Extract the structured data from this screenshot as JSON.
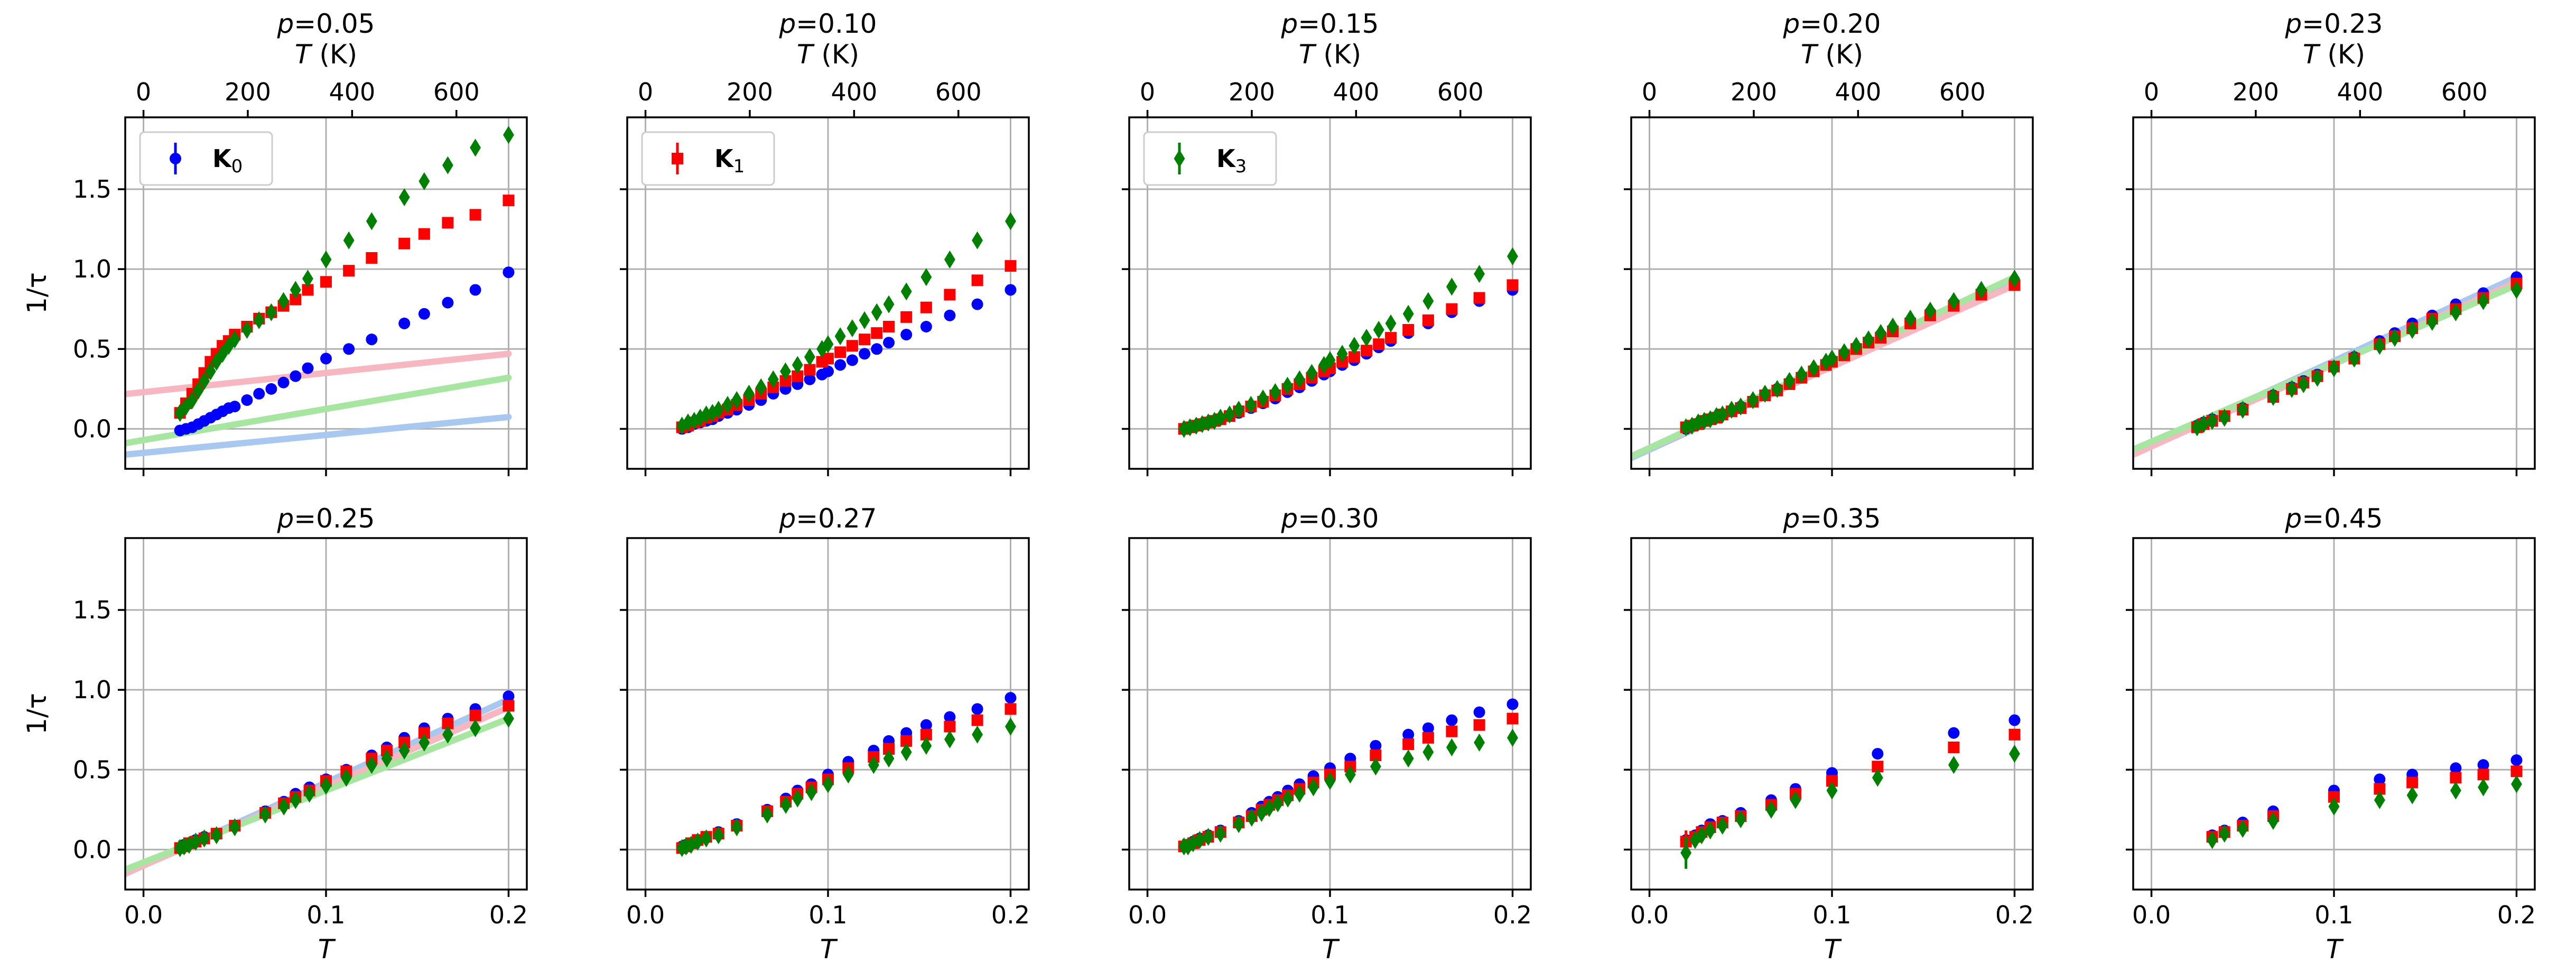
{
  "chart_data": {
    "type": "scatter",
    "ylabel": "1/τ",
    "xlabel": "T",
    "xlim": [
      -0.01,
      0.21
    ],
    "ylim": [
      -0.25,
      1.95
    ],
    "xticks": [
      0.0,
      0.1,
      0.2
    ],
    "xtick_labels": [
      "0.0",
      "0.1",
      "0.2"
    ],
    "yticks": [
      0.0,
      0.5,
      1.0,
      1.5
    ],
    "ytick_labels": [
      "0.0",
      "0.5",
      "1.0",
      "1.5"
    ],
    "top_axis": {
      "label": "T (K)",
      "kelvin_per_unit": 3500,
      "ticks": [
        0,
        200,
        400,
        600
      ],
      "tick_labels": [
        "0",
        "200",
        "400",
        "600"
      ]
    },
    "grid": true,
    "series_styles": [
      {
        "name": "K",
        "subscript": "0",
        "color": "#0000ff",
        "fit_color": "#a8c8f0",
        "marker": "circle"
      },
      {
        "name": "K",
        "subscript": "1",
        "color": "#ff0000",
        "fit_color": "#f7b7c0",
        "marker": "square"
      },
      {
        "name": "K",
        "subscript": "3",
        "color": "#008000",
        "fit_color": "#a6e6a0",
        "marker": "diamond"
      }
    ],
    "panels": [
      {
        "title_var": "p",
        "title_value": "=0.05",
        "legend_series": 0,
        "x": [
          0.02,
          0.0233,
          0.0267,
          0.03,
          0.0333,
          0.0367,
          0.04,
          0.0433,
          0.0467,
          0.05,
          0.0567,
          0.0633,
          0.07,
          0.0767,
          0.0833,
          0.09,
          0.1,
          0.1125,
          0.125,
          0.1429,
          0.1538,
          0.1667,
          0.1818,
          0.2
        ],
        "series": [
          [
            -0.01,
            0.0,
            0.01,
            0.03,
            0.05,
            0.07,
            0.09,
            0.11,
            0.13,
            0.14,
            0.18,
            0.22,
            0.25,
            0.29,
            0.33,
            0.38,
            0.44,
            0.5,
            0.56,
            0.66,
            0.72,
            0.79,
            0.87,
            0.98
          ],
          [
            0.1,
            0.16,
            0.22,
            0.28,
            0.35,
            0.42,
            0.47,
            0.52,
            0.55,
            0.59,
            0.64,
            0.69,
            0.73,
            0.77,
            0.81,
            0.87,
            0.92,
            0.99,
            1.07,
            1.16,
            1.22,
            1.29,
            1.34,
            1.43
          ],
          [
            0.1,
            0.14,
            0.18,
            0.24,
            0.3,
            0.36,
            0.42,
            0.47,
            0.52,
            0.56,
            0.62,
            0.68,
            0.73,
            0.8,
            0.87,
            0.94,
            1.06,
            1.18,
            1.3,
            1.45,
            1.55,
            1.65,
            1.76,
            1.84
          ]
        ],
        "fits": [
          [
            -0.15,
            1.12
          ],
          [
            0.23,
            1.2
          ],
          [
            -0.07,
            1.95
          ]
        ]
      },
      {
        "title_var": "p",
        "title_value": "=0.10",
        "legend_series": 1,
        "x": [
          0.02,
          0.0233,
          0.0267,
          0.03,
          0.0333,
          0.0367,
          0.04,
          0.045,
          0.05,
          0.0567,
          0.0633,
          0.07,
          0.0767,
          0.0833,
          0.09,
          0.0967,
          0.1,
          0.1067,
          0.1133,
          0.12,
          0.1267,
          0.1333,
          0.1429,
          0.1538,
          0.1667,
          0.1818,
          0.2
        ],
        "series": [
          [
            0.0,
            0.01,
            0.03,
            0.04,
            0.05,
            0.06,
            0.08,
            0.1,
            0.12,
            0.15,
            0.18,
            0.22,
            0.25,
            0.28,
            0.31,
            0.34,
            0.36,
            0.4,
            0.43,
            0.47,
            0.5,
            0.54,
            0.59,
            0.64,
            0.71,
            0.78,
            0.87
          ],
          [
            0.01,
            0.02,
            0.04,
            0.05,
            0.07,
            0.08,
            0.1,
            0.12,
            0.15,
            0.18,
            0.22,
            0.26,
            0.3,
            0.33,
            0.37,
            0.42,
            0.44,
            0.48,
            0.52,
            0.56,
            0.6,
            0.64,
            0.7,
            0.76,
            0.84,
            0.93,
            1.02
          ],
          [
            0.02,
            0.04,
            0.05,
            0.07,
            0.09,
            0.1,
            0.12,
            0.15,
            0.18,
            0.22,
            0.26,
            0.31,
            0.36,
            0.4,
            0.45,
            0.5,
            0.53,
            0.58,
            0.63,
            0.68,
            0.73,
            0.78,
            0.86,
            0.95,
            1.06,
            1.18,
            1.3
          ]
        ],
        "fits": []
      },
      {
        "title_var": "p",
        "title_value": "=0.15",
        "legend_series": 2,
        "x": [
          0.02,
          0.0233,
          0.0267,
          0.03,
          0.0333,
          0.0367,
          0.04,
          0.045,
          0.05,
          0.0567,
          0.0633,
          0.07,
          0.0767,
          0.0833,
          0.09,
          0.0967,
          0.1,
          0.1067,
          0.1133,
          0.12,
          0.1267,
          0.1333,
          0.1429,
          0.1538,
          0.1667,
          0.1818,
          0.2
        ],
        "series": [
          [
            0.0,
            0.01,
            0.02,
            0.03,
            0.04,
            0.05,
            0.06,
            0.08,
            0.1,
            0.13,
            0.16,
            0.19,
            0.23,
            0.26,
            0.3,
            0.34,
            0.36,
            0.4,
            0.43,
            0.47,
            0.51,
            0.55,
            0.6,
            0.66,
            0.73,
            0.8,
            0.87
          ],
          [
            0.0,
            0.01,
            0.02,
            0.03,
            0.04,
            0.05,
            0.06,
            0.08,
            0.11,
            0.14,
            0.17,
            0.21,
            0.25,
            0.28,
            0.32,
            0.36,
            0.38,
            0.42,
            0.45,
            0.49,
            0.53,
            0.57,
            0.62,
            0.68,
            0.75,
            0.82,
            0.9
          ],
          [
            0.0,
            0.01,
            0.02,
            0.03,
            0.04,
            0.05,
            0.07,
            0.09,
            0.12,
            0.15,
            0.19,
            0.23,
            0.27,
            0.31,
            0.35,
            0.4,
            0.43,
            0.47,
            0.52,
            0.57,
            0.62,
            0.66,
            0.72,
            0.8,
            0.89,
            0.97,
            1.08
          ]
        ],
        "fits": []
      },
      {
        "title_var": "p",
        "title_value": "=0.20",
        "legend_series": -1,
        "x": [
          0.02,
          0.0233,
          0.0267,
          0.03,
          0.0333,
          0.0367,
          0.04,
          0.045,
          0.05,
          0.0567,
          0.0633,
          0.07,
          0.0767,
          0.0833,
          0.09,
          0.0967,
          0.1,
          0.1067,
          0.1133,
          0.12,
          0.1267,
          0.1333,
          0.1429,
          0.1538,
          0.1667,
          0.1818,
          0.2
        ],
        "series": [
          [
            0.0,
            0.02,
            0.03,
            0.05,
            0.06,
            0.07,
            0.09,
            0.11,
            0.14,
            0.17,
            0.21,
            0.25,
            0.29,
            0.33,
            0.37,
            0.41,
            0.43,
            0.47,
            0.51,
            0.55,
            0.59,
            0.62,
            0.67,
            0.73,
            0.79,
            0.85,
            0.92
          ],
          [
            0.01,
            0.02,
            0.03,
            0.05,
            0.06,
            0.07,
            0.09,
            0.11,
            0.13,
            0.17,
            0.21,
            0.24,
            0.28,
            0.32,
            0.36,
            0.4,
            0.42,
            0.46,
            0.5,
            0.54,
            0.57,
            0.61,
            0.66,
            0.71,
            0.77,
            0.84,
            0.9
          ],
          [
            0.01,
            0.02,
            0.04,
            0.05,
            0.06,
            0.08,
            0.09,
            0.12,
            0.14,
            0.18,
            0.22,
            0.25,
            0.3,
            0.34,
            0.38,
            0.42,
            0.44,
            0.48,
            0.52,
            0.56,
            0.6,
            0.64,
            0.69,
            0.74,
            0.8,
            0.87,
            0.94
          ]
        ],
        "fits": [
          [
            -0.13,
            5.2
          ],
          [
            -0.12,
            5.1
          ],
          [
            -0.12,
            5.35
          ]
        ]
      },
      {
        "title_var": "p",
        "title_value": "=0.23",
        "legend_series": -1,
        "x": [
          0.025,
          0.0286,
          0.0333,
          0.04,
          0.05,
          0.0667,
          0.0769,
          0.0833,
          0.0909,
          0.1,
          0.1111,
          0.125,
          0.1333,
          0.1429,
          0.1538,
          0.1667,
          0.1818,
          0.2
        ],
        "series": [
          [
            0.02,
            0.04,
            0.06,
            0.08,
            0.13,
            0.21,
            0.26,
            0.3,
            0.34,
            0.39,
            0.45,
            0.55,
            0.6,
            0.66,
            0.71,
            0.78,
            0.85,
            0.95
          ],
          [
            0.01,
            0.03,
            0.05,
            0.08,
            0.12,
            0.2,
            0.25,
            0.29,
            0.33,
            0.39,
            0.44,
            0.53,
            0.58,
            0.63,
            0.69,
            0.75,
            0.82,
            0.91
          ],
          [
            0.01,
            0.03,
            0.05,
            0.07,
            0.12,
            0.2,
            0.25,
            0.28,
            0.32,
            0.38,
            0.44,
            0.52,
            0.57,
            0.62,
            0.67,
            0.73,
            0.8,
            0.87
          ]
        ],
        "fits": [
          [
            -0.1,
            5.25
          ],
          [
            -0.11,
            5.15
          ],
          [
            -0.08,
            4.9
          ]
        ]
      },
      {
        "title_var": "p",
        "title_value": "=0.25",
        "legend_series": -1,
        "x": [
          0.02,
          0.0222,
          0.025,
          0.0286,
          0.0333,
          0.04,
          0.05,
          0.0667,
          0.0769,
          0.0833,
          0.0909,
          0.1,
          0.1111,
          0.125,
          0.1333,
          0.1429,
          0.1538,
          0.1667,
          0.1818,
          0.2
        ],
        "series": [
          [
            0.01,
            0.03,
            0.04,
            0.06,
            0.08,
            0.1,
            0.15,
            0.24,
            0.3,
            0.35,
            0.39,
            0.44,
            0.5,
            0.59,
            0.64,
            0.7,
            0.76,
            0.82,
            0.88,
            0.96
          ],
          [
            0.01,
            0.02,
            0.04,
            0.05,
            0.07,
            0.1,
            0.15,
            0.23,
            0.29,
            0.33,
            0.37,
            0.43,
            0.49,
            0.57,
            0.62,
            0.67,
            0.73,
            0.79,
            0.84,
            0.9
          ],
          [
            0.01,
            0.02,
            0.03,
            0.05,
            0.07,
            0.09,
            0.14,
            0.22,
            0.27,
            0.31,
            0.35,
            0.4,
            0.45,
            0.53,
            0.57,
            0.62,
            0.67,
            0.72,
            0.76,
            0.82
          ]
        ],
        "fits": [
          [
            -0.1,
            5.2
          ],
          [
            -0.1,
            4.95
          ],
          [
            -0.08,
            4.5
          ]
        ]
      },
      {
        "title_var": "p",
        "title_value": "=0.27",
        "legend_series": -1,
        "x": [
          0.02,
          0.0222,
          0.025,
          0.0286,
          0.0333,
          0.04,
          0.05,
          0.0667,
          0.0769,
          0.0833,
          0.0909,
          0.1,
          0.1111,
          0.125,
          0.1333,
          0.1429,
          0.1538,
          0.1667,
          0.1818,
          0.2
        ],
        "series": [
          [
            0.02,
            0.03,
            0.04,
            0.06,
            0.08,
            0.11,
            0.16,
            0.25,
            0.32,
            0.37,
            0.41,
            0.47,
            0.55,
            0.62,
            0.68,
            0.73,
            0.78,
            0.83,
            0.88,
            0.95
          ],
          [
            0.01,
            0.02,
            0.04,
            0.06,
            0.08,
            0.1,
            0.15,
            0.24,
            0.3,
            0.35,
            0.39,
            0.44,
            0.51,
            0.58,
            0.63,
            0.68,
            0.72,
            0.77,
            0.81,
            0.88
          ],
          [
            0.01,
            0.02,
            0.03,
            0.05,
            0.07,
            0.09,
            0.14,
            0.22,
            0.28,
            0.32,
            0.36,
            0.41,
            0.47,
            0.53,
            0.57,
            0.61,
            0.65,
            0.69,
            0.72,
            0.77
          ]
        ],
        "fits": []
      },
      {
        "title_var": "p",
        "title_value": "=0.30",
        "legend_series": -1,
        "x": [
          0.02,
          0.0222,
          0.025,
          0.0286,
          0.0333,
          0.04,
          0.05,
          0.0571,
          0.0625,
          0.0667,
          0.0714,
          0.0769,
          0.0833,
          0.0909,
          0.1,
          0.1111,
          0.125,
          0.1429,
          0.1538,
          0.1667,
          0.1818,
          0.2
        ],
        "series": [
          [
            0.02,
            0.03,
            0.05,
            0.07,
            0.09,
            0.12,
            0.18,
            0.23,
            0.27,
            0.3,
            0.33,
            0.37,
            0.41,
            0.46,
            0.51,
            0.57,
            0.65,
            0.72,
            0.76,
            0.81,
            0.86,
            0.91
          ],
          [
            0.02,
            0.03,
            0.04,
            0.06,
            0.08,
            0.11,
            0.17,
            0.21,
            0.25,
            0.28,
            0.31,
            0.34,
            0.38,
            0.42,
            0.47,
            0.52,
            0.59,
            0.66,
            0.7,
            0.74,
            0.78,
            0.82
          ],
          [
            0.02,
            0.02,
            0.04,
            0.06,
            0.08,
            0.1,
            0.16,
            0.2,
            0.23,
            0.26,
            0.29,
            0.32,
            0.35,
            0.39,
            0.43,
            0.47,
            0.52,
            0.57,
            0.61,
            0.64,
            0.67,
            0.7
          ]
        ],
        "fits": []
      },
      {
        "title_var": "p",
        "title_value": "=0.35",
        "legend_series": -1,
        "x": [
          0.02,
          0.025,
          0.0286,
          0.0333,
          0.04,
          0.05,
          0.0667,
          0.08,
          0.1,
          0.125,
          0.1667,
          0.2
        ],
        "series": [
          [
            0.06,
            0.09,
            0.12,
            0.16,
            0.18,
            0.23,
            0.31,
            0.38,
            0.48,
            0.6,
            0.73,
            0.81
          ],
          [
            0.05,
            0.08,
            0.11,
            0.14,
            0.17,
            0.21,
            0.28,
            0.35,
            0.43,
            0.52,
            0.64,
            0.72
          ],
          [
            -0.02,
            0.06,
            0.09,
            0.12,
            0.15,
            0.19,
            0.25,
            0.31,
            0.37,
            0.45,
            0.53,
            0.6
          ]
        ],
        "err": [
          [
            0.04,
            0.02,
            0.02,
            0.01,
            0.01,
            0.01,
            0.01,
            0.01,
            0.01,
            0.01,
            0.01,
            0.01
          ],
          [
            0.07,
            0.03,
            0.02,
            0.01,
            0.01,
            0.01,
            0.01,
            0.01,
            0.01,
            0.01,
            0.01,
            0.01
          ],
          [
            0.1,
            0.03,
            0.02,
            0.01,
            0.01,
            0.01,
            0.01,
            0.01,
            0.01,
            0.01,
            0.01,
            0.01
          ]
        ],
        "fits": []
      },
      {
        "title_var": "p",
        "title_value": "=0.45",
        "legend_series": -1,
        "x": [
          0.0333,
          0.04,
          0.05,
          0.0667,
          0.1,
          0.125,
          0.1429,
          0.1667,
          0.1818,
          0.2
        ],
        "series": [
          [
            0.09,
            0.12,
            0.17,
            0.24,
            0.37,
            0.44,
            0.47,
            0.51,
            0.53,
            0.56
          ],
          [
            0.08,
            0.11,
            0.15,
            0.21,
            0.33,
            0.38,
            0.42,
            0.45,
            0.47,
            0.49
          ],
          [
            0.06,
            0.1,
            0.13,
            0.18,
            0.27,
            0.31,
            0.34,
            0.37,
            0.39,
            0.41
          ]
        ],
        "fits": []
      }
    ]
  }
}
